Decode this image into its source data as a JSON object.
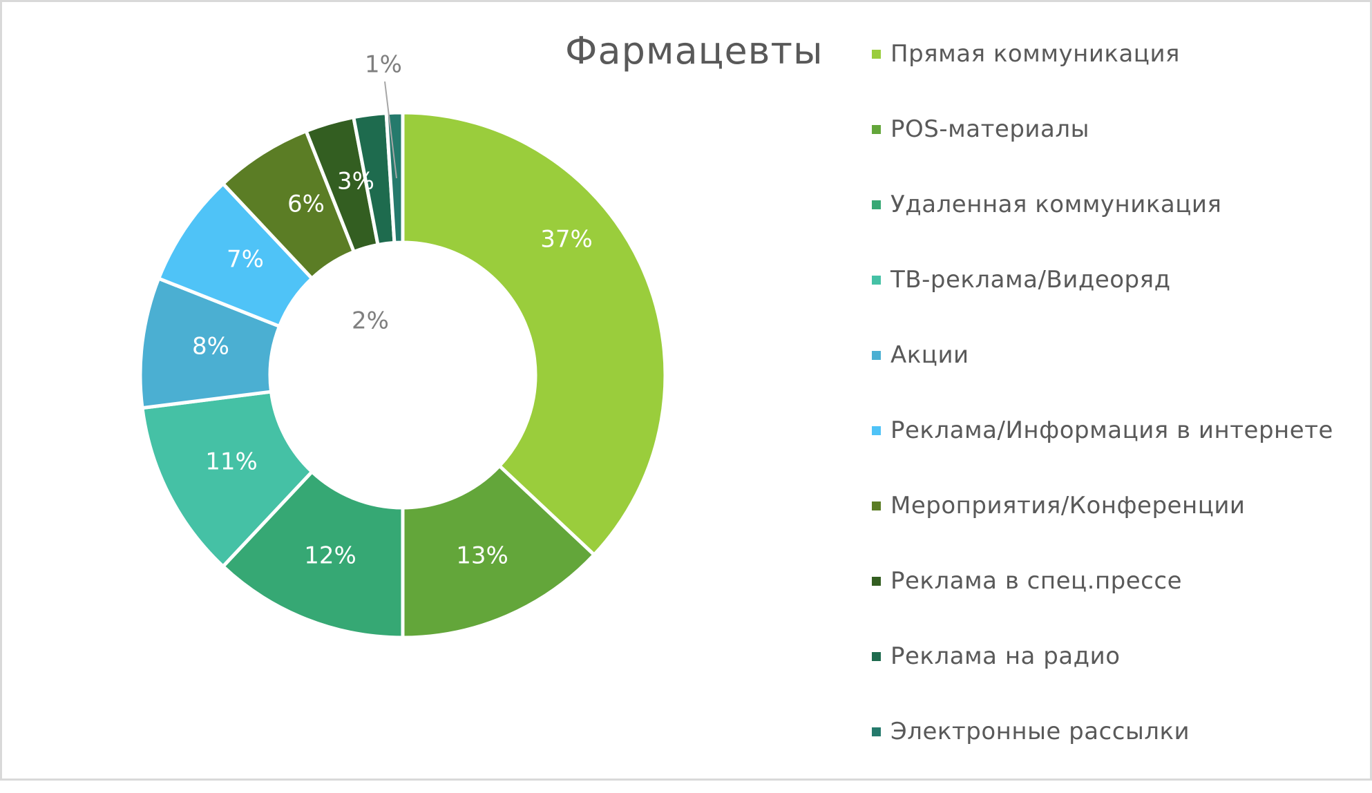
{
  "chart_data": {
    "type": "pie",
    "variant": "donut",
    "title": "Фармацевты",
    "legend_position": "right",
    "categories": [
      "Прямая коммуникация",
      "POS-материалы",
      "Удаленная коммуникация",
      "ТВ-реклама/Видеоряд",
      "Акции",
      "Реклама/Информация в интернете",
      "Мероприятия/Конференции",
      "Реклама в спец.прессе",
      "Реклама на радио",
      "Электронные рассылки"
    ],
    "values": [
      37,
      13,
      12,
      11,
      8,
      7,
      6,
      3,
      2,
      1
    ],
    "data_labels": [
      "37%",
      "13%",
      "12%",
      "11%",
      "8%",
      "7%",
      "6%",
      "3%",
      "2%",
      "1%"
    ],
    "colors": [
      "#9ACD3C",
      "#63A63A",
      "#36A874",
      "#45C1A5",
      "#4BAFD2",
      "#4FC3F7",
      "#5B7D25",
      "#335E21",
      "#1E6B4E",
      "#257A6C"
    ],
    "label_colors": [
      "#ffffff",
      "#ffffff",
      "#ffffff",
      "#ffffff",
      "#ffffff",
      "#ffffff",
      "#ffffff",
      "#ffffff",
      "#7f7f7f",
      "#7f7f7f"
    ]
  }
}
